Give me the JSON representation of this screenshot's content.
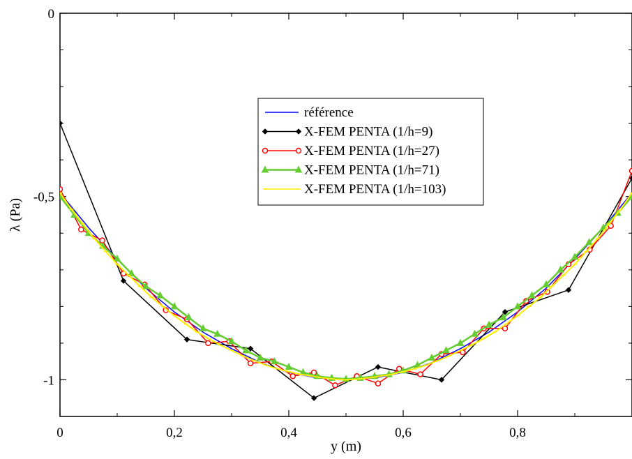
{
  "chart_data": {
    "type": "line",
    "title": "",
    "xlabel": "y (m)",
    "ylabel": "λ (Pa)",
    "xlim": [
      0,
      1
    ],
    "ylim": [
      -1.1,
      0
    ],
    "x_ticks": [
      0,
      0.2,
      0.4,
      0.6,
      0.8
    ],
    "x_tick_labels": [
      "0",
      "0,2",
      "0,4",
      "0,6",
      "0,8"
    ],
    "y_ticks": [
      0,
      -0.5,
      -1
    ],
    "y_tick_labels": [
      "0",
      "-0,5",
      "-1"
    ],
    "grid": false,
    "legend_position": "upper-center",
    "series": [
      {
        "name": "référence",
        "color": "#0000ff",
        "marker": "none",
        "x": [
          0,
          0.05,
          0.1,
          0.15,
          0.2,
          0.25,
          0.3,
          0.35,
          0.4,
          0.45,
          0.5,
          0.55,
          0.6,
          0.65,
          0.7,
          0.75,
          0.8,
          0.85,
          0.9,
          0.95,
          1.0
        ],
        "y": [
          -0.49,
          -0.585,
          -0.67,
          -0.75,
          -0.815,
          -0.87,
          -0.915,
          -0.953,
          -0.98,
          -0.995,
          -1.0,
          -0.995,
          -0.98,
          -0.953,
          -0.915,
          -0.87,
          -0.815,
          -0.75,
          -0.67,
          -0.585,
          -0.49
        ]
      },
      {
        "name": "X-FEM PENTA (1/h=9)",
        "color": "#000000",
        "marker": "diamond",
        "x": [
          0,
          0.111,
          0.222,
          0.333,
          0.444,
          0.556,
          0.667,
          0.778,
          0.889,
          1.0
        ],
        "y": [
          -0.3,
          -0.73,
          -0.89,
          -0.915,
          -1.05,
          -0.965,
          -1.0,
          -0.815,
          -0.755,
          -0.45
        ]
      },
      {
        "name": "X-FEM PENTA (1/h=27)",
        "color": "#ff0000",
        "marker": "circle",
        "x": [
          0,
          0.037,
          0.074,
          0.111,
          0.148,
          0.185,
          0.222,
          0.259,
          0.296,
          0.333,
          0.37,
          0.407,
          0.444,
          0.481,
          0.519,
          0.556,
          0.593,
          0.63,
          0.667,
          0.704,
          0.741,
          0.778,
          0.815,
          0.852,
          0.889,
          0.926,
          0.963,
          1.0
        ],
        "y": [
          -0.48,
          -0.59,
          -0.62,
          -0.71,
          -0.74,
          -0.81,
          -0.835,
          -0.9,
          -0.895,
          -0.955,
          -0.95,
          -0.99,
          -0.98,
          -1.015,
          -0.99,
          -1.01,
          -0.97,
          -0.985,
          -0.93,
          -0.925,
          -0.86,
          -0.86,
          -0.785,
          -0.76,
          -0.685,
          -0.645,
          -0.58,
          -0.43
        ]
      },
      {
        "name": "X-FEM PENTA (1/h=71)",
        "color": "#66cc33",
        "marker": "triangle",
        "x": [
          0,
          0.025,
          0.05,
          0.075,
          0.1,
          0.125,
          0.15,
          0.175,
          0.2,
          0.225,
          0.25,
          0.275,
          0.3,
          0.325,
          0.35,
          0.375,
          0.4,
          0.425,
          0.45,
          0.475,
          0.5,
          0.525,
          0.55,
          0.575,
          0.6,
          0.625,
          0.65,
          0.675,
          0.7,
          0.725,
          0.75,
          0.775,
          0.8,
          0.825,
          0.85,
          0.875,
          0.9,
          0.925,
          0.95,
          0.975,
          1.0
        ],
        "y": [
          -0.5,
          -0.55,
          -0.6,
          -0.635,
          -0.67,
          -0.71,
          -0.745,
          -0.77,
          -0.8,
          -0.83,
          -0.86,
          -0.875,
          -0.895,
          -0.92,
          -0.94,
          -0.95,
          -0.965,
          -0.98,
          -0.99,
          -0.995,
          -0.998,
          -0.995,
          -0.99,
          -0.985,
          -0.975,
          -0.96,
          -0.94,
          -0.92,
          -0.9,
          -0.875,
          -0.85,
          -0.83,
          -0.8,
          -0.77,
          -0.74,
          -0.7,
          -0.665,
          -0.625,
          -0.585,
          -0.545,
          -0.5
        ]
      },
      {
        "name": "X-FEM PENTA (1/h=103)",
        "color": "#ffee00",
        "marker": "plus",
        "x": [
          0,
          0.02,
          0.04,
          0.06,
          0.08,
          0.1,
          0.12,
          0.14,
          0.16,
          0.18,
          0.2,
          0.22,
          0.24,
          0.26,
          0.28,
          0.3,
          0.32,
          0.34,
          0.36,
          0.38,
          0.4,
          0.42,
          0.44,
          0.46,
          0.48,
          0.5,
          0.52,
          0.54,
          0.56,
          0.58,
          0.6,
          0.62,
          0.64,
          0.66,
          0.68,
          0.7,
          0.72,
          0.74,
          0.76,
          0.78,
          0.8,
          0.82,
          0.84,
          0.86,
          0.88,
          0.9,
          0.92,
          0.94,
          0.96,
          0.98,
          1.0
        ],
        "y": [
          -0.49,
          -0.535,
          -0.575,
          -0.615,
          -0.65,
          -0.685,
          -0.715,
          -0.745,
          -0.775,
          -0.8,
          -0.825,
          -0.848,
          -0.87,
          -0.888,
          -0.905,
          -0.92,
          -0.935,
          -0.948,
          -0.96,
          -0.97,
          -0.978,
          -0.985,
          -0.99,
          -0.995,
          -0.998,
          -1.0,
          -0.998,
          -0.995,
          -0.99,
          -0.985,
          -0.978,
          -0.97,
          -0.96,
          -0.948,
          -0.935,
          -0.92,
          -0.905,
          -0.888,
          -0.87,
          -0.848,
          -0.825,
          -0.8,
          -0.775,
          -0.745,
          -0.715,
          -0.685,
          -0.65,
          -0.615,
          -0.575,
          -0.535,
          -0.49
        ]
      }
    ]
  }
}
